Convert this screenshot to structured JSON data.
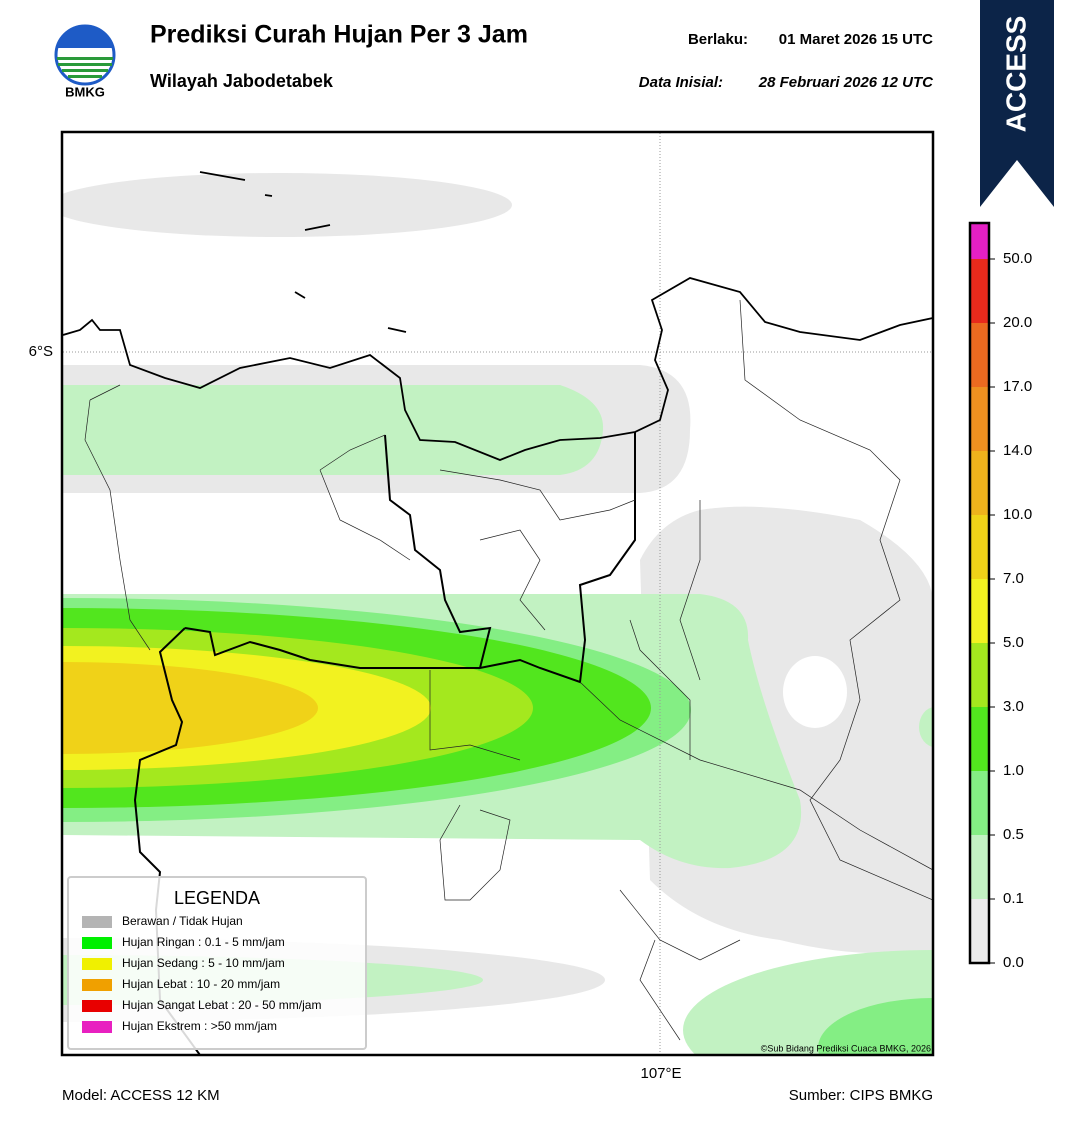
{
  "header": {
    "logo_text": "BMKG",
    "title": "Prediksi Curah Hujan Per 3 Jam",
    "subtitle": "Wilayah Jabodetabek",
    "valid_label": "Berlaku:",
    "valid_time": "01 Maret 2026 15 UTC",
    "init_label": "Data Inisial:",
    "init_time": "28 Februari 2026 12 UTC"
  },
  "badge": "ACCESS",
  "map": {
    "lat_label": "6°S",
    "lon_label": "107°E",
    "credit": "©Sub Bidang Prediksi Cuaca BMKG, 2026"
  },
  "legend": {
    "title": "LEGENDA",
    "items": [
      {
        "label": "Berawan / Tidak Hujan",
        "color": "#b4b4b4"
      },
      {
        "label": "Hujan Ringan : 0.1 - 5 mm/jam",
        "color": "#00f000"
      },
      {
        "label": "Hujan Sedang : 5 - 10 mm/jam",
        "color": "#f0f000"
      },
      {
        "label": "Hujan Lebat : 10 - 20 mm/jam",
        "color": "#f0a000"
      },
      {
        "label": "Hujan Sangat Lebat : 20 - 50 mm/jam",
        "color": "#e80000"
      },
      {
        "label": "Hujan Ekstrem : >50 mm/jam",
        "color": "#e820c0"
      }
    ]
  },
  "colorbar": {
    "ticks": [
      {
        "value": 0,
        "label": "0.0"
      },
      0.1,
      0.5,
      {
        "value": 1,
        "label": "1.0"
      },
      {
        "value": 3,
        "label": "3.0"
      },
      {
        "value": 5,
        "label": "5.0"
      },
      {
        "value": 7,
        "label": "7.0"
      },
      {
        "value": 10,
        "label": "10.0"
      },
      {
        "value": 14,
        "label": "14.0"
      },
      {
        "value": 17,
        "label": "17.0"
      },
      {
        "value": 20,
        "label": "20.0"
      },
      {
        "value": 50,
        "label": "50.0"
      }
    ],
    "colors": [
      "#ececec",
      "#c2f2c2",
      "#84ee84",
      "#52e61e",
      "#a4e81e",
      "#f2f220",
      "#f0d218",
      "#eeb21c",
      "#ee9020",
      "#ec6a20",
      "#e82a1c",
      "#e420c4"
    ]
  },
  "footer": {
    "model": "Model: ACCESS 12 KM",
    "source": "Sumber: CIPS BMKG"
  }
}
